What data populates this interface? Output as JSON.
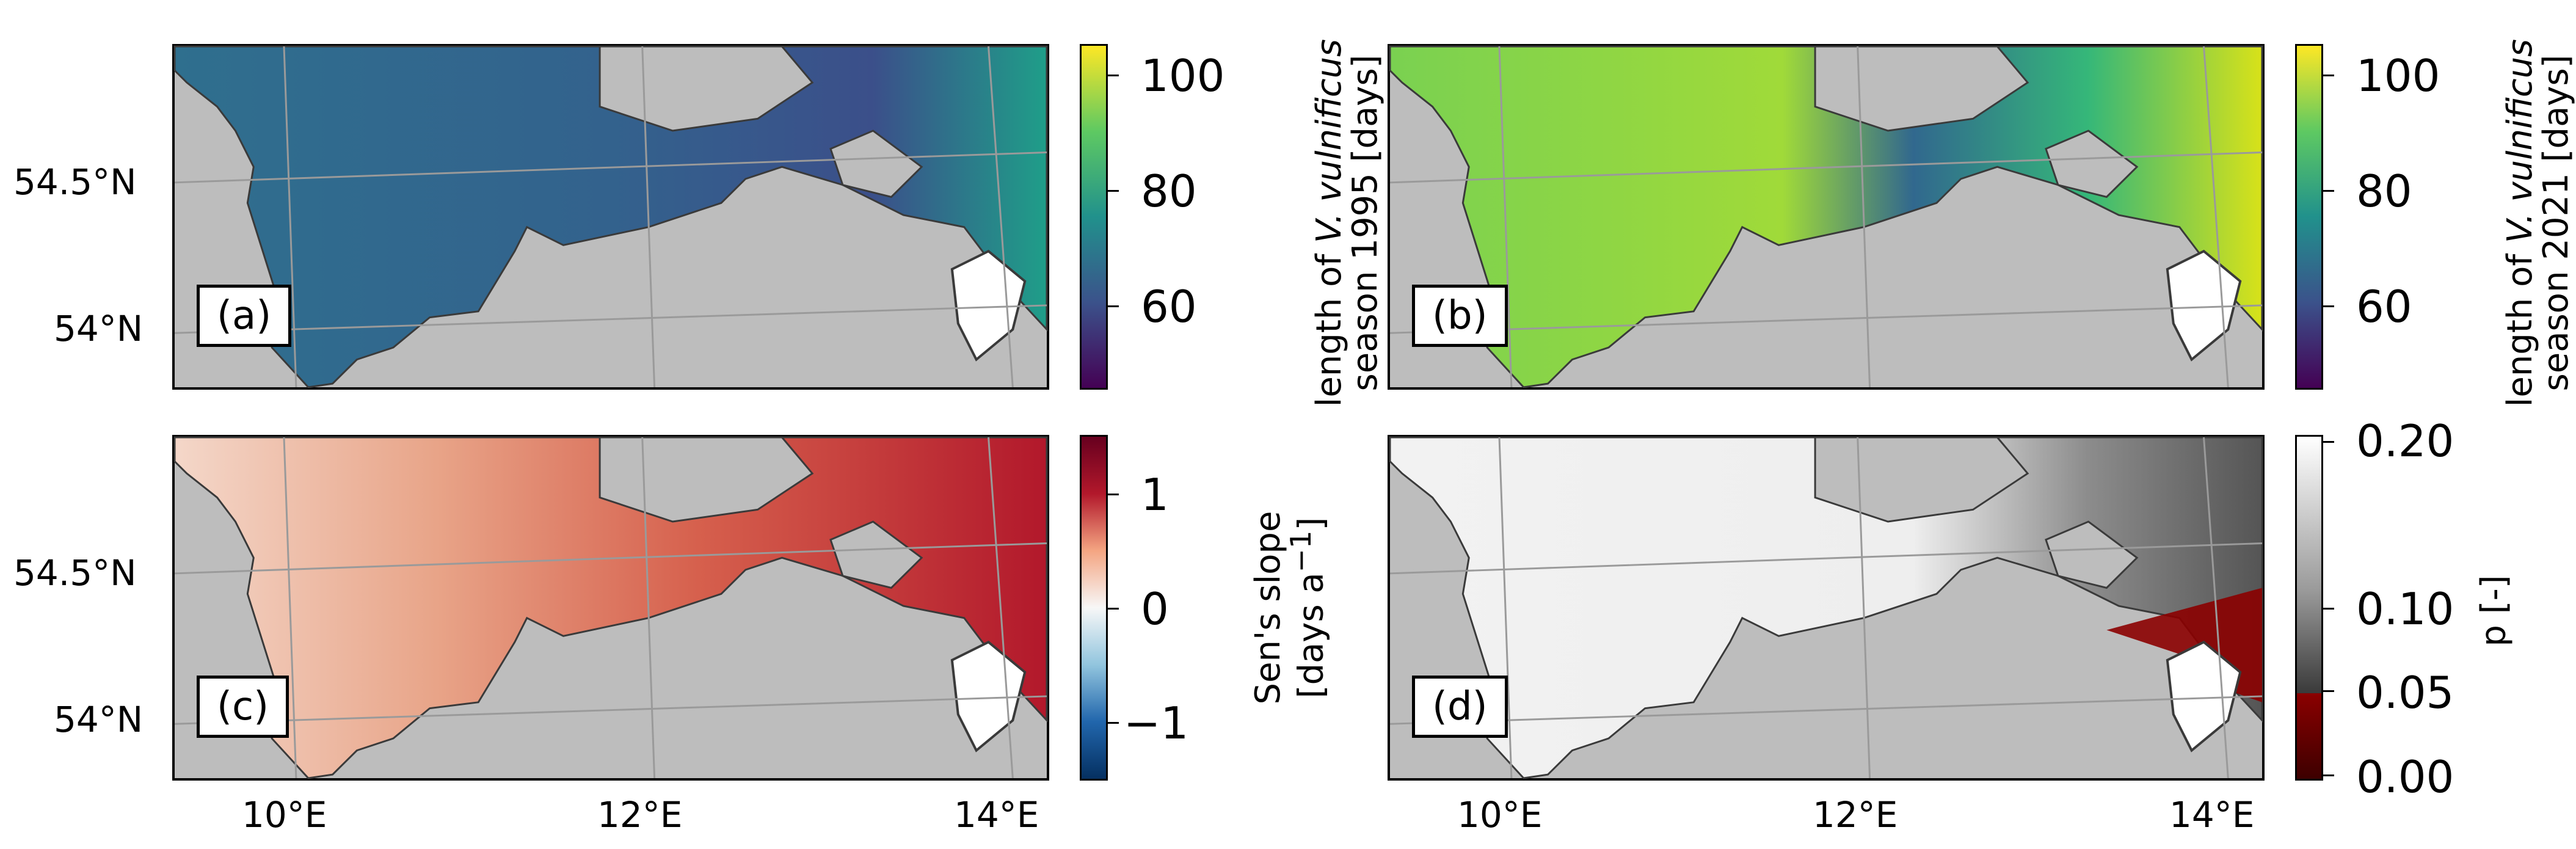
{
  "panels": {
    "a": {
      "label": "(a)",
      "colorbar": {
        "ticks": [
          "60",
          "80",
          "100"
        ],
        "title_line1_pre": "length of ",
        "title_species": "V. vulnificus",
        "title_line2": "season 1995 [days]"
      }
    },
    "b": {
      "label": "(b)",
      "colorbar": {
        "ticks": [
          "60",
          "80",
          "100"
        ],
        "title_line1_pre": "length of ",
        "title_species": "V. vulnificus",
        "title_line2": "season 2021 [days]"
      }
    },
    "c": {
      "label": "(c)",
      "colorbar": {
        "ticks": [
          "1",
          "0",
          "−1"
        ],
        "title_line1": "Sen's slope",
        "title_line2_pre": "[days a",
        "title_line2_sup": "−1",
        "title_line2_post": "]"
      }
    },
    "d": {
      "label": "(d)",
      "colorbar": {
        "ticks": [
          "0.20",
          "0.10",
          "0.05",
          "0.00"
        ],
        "title": "p [-]"
      }
    }
  },
  "axes": {
    "lat_ticks": [
      "54.5°N",
      "54°N"
    ],
    "lon_ticks": [
      "10°E",
      "12°E",
      "14°E"
    ]
  },
  "colors": {
    "land": "#bdbdbd",
    "coast_dark": "#3a3a3a",
    "viridis_low": "#440154",
    "viridis_mid": "#21918c",
    "viridis_high": "#fde725",
    "rdbu_low": "#053061",
    "rdbu_mid": "#f7f7f7",
    "rdbu_high": "#67001f",
    "pval_sig": "#8b0000"
  }
}
